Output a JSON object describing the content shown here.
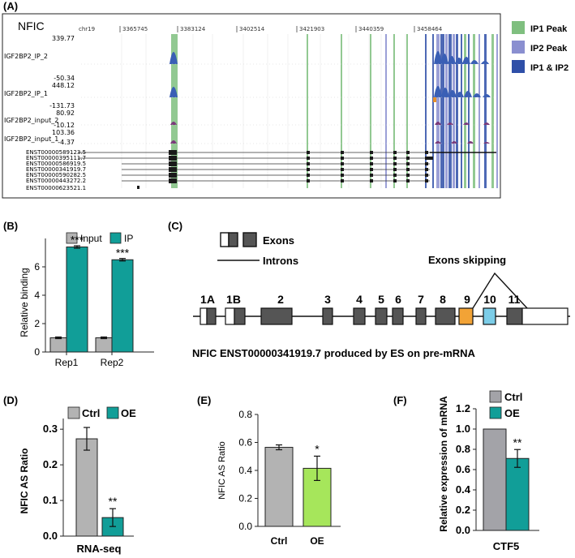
{
  "figure": {
    "panel_a": {
      "label": "(A)",
      "gene": "NFIC",
      "chrom": "chr19",
      "coords": [
        "3365745",
        "3383124",
        "3402514",
        "3421903",
        "3440359",
        "3458464"
      ],
      "track_names": [
        "IGF2BP2_IP_2",
        "IGF2BP2_IP_1",
        "IGF2BP2_input_2",
        "IGF2BP2_input_1"
      ],
      "scales": [
        [
          "339.77",
          "-50.34"
        ],
        [
          "448.12",
          "-131.73"
        ],
        [
          "80.92",
          "-10.12"
        ],
        [
          "103.36",
          "-4.37"
        ]
      ],
      "transcripts": [
        "ENST00000589123.5",
        "ENST00000395111.7",
        "ENST00000586919.5",
        "ENST00000341919.7",
        "ENST00000590282.5",
        "ENST00000443272.2",
        "ENST00000623521.1"
      ],
      "legend": [
        {
          "label": "IP1 Peak",
          "color": "#7fbf7f"
        },
        {
          "label": "IP2 Peak",
          "color": "#8a8fd0"
        },
        {
          "label": "IP1 & IP2",
          "color": "#2f4fa8"
        }
      ]
    },
    "panel_c": {
      "label": "(C)",
      "exons_legend": "Exons",
      "introns_legend": "Introns",
      "skipping_label": "Exons skipping",
      "exon_numbers": [
        "1A",
        "1B",
        "2",
        "3",
        "4",
        "5",
        "6",
        "7",
        "8",
        "9",
        "10",
        "11"
      ],
      "caption": "NFIC ENST00000341919.7 produced by ES on pre-mRNA"
    }
  },
  "chart_data": [
    {
      "id": "B",
      "panel_label": "(B)",
      "type": "bar",
      "categories": [
        "Rep1",
        "Rep2"
      ],
      "series": [
        {
          "name": "Input",
          "color": "#b3b3b3",
          "values": [
            1.0,
            1.0
          ]
        },
        {
          "name": "IP",
          "color": "#119e98",
          "values": [
            7.4,
            6.5
          ]
        }
      ],
      "significance": [
        "***",
        "***"
      ],
      "ylabel": "Relative binding",
      "yticks": [
        "0",
        "2",
        "4",
        "6"
      ],
      "ylim": [
        0,
        8
      ]
    },
    {
      "id": "D",
      "panel_label": "(D)",
      "type": "bar",
      "categories": [
        "RNA-seq"
      ],
      "series": [
        {
          "name": "Ctrl",
          "color": "#b3b3b3",
          "values": [
            0.273
          ]
        },
        {
          "name": "OE",
          "color": "#119e98",
          "values": [
            0.052
          ]
        }
      ],
      "significance": "**",
      "xlabel": "RNA-seq",
      "ylabel": "NFIC AS Ratio",
      "yticks": [
        "0.0",
        "0.1",
        "0.2",
        "0.3"
      ],
      "ylim": [
        0,
        0.33
      ]
    },
    {
      "id": "E",
      "panel_label": "(E)",
      "type": "bar",
      "categories": [
        "Ctrl",
        "OE"
      ],
      "values": [
        0.565,
        0.415
      ],
      "colors": [
        "#b3b3b3",
        "#a6e65b"
      ],
      "significance": "*",
      "ylabel": "NFIC AS Ratio",
      "yticks": [
        "0.0",
        "0.2",
        "0.4",
        "0.6",
        "0.8"
      ],
      "ylim": [
        0,
        0.8
      ]
    },
    {
      "id": "F",
      "panel_label": "(F)",
      "type": "bar",
      "categories": [
        "CTF5"
      ],
      "series": [
        {
          "name": "Ctrl",
          "color": "#a3a3a8",
          "values": [
            1.0
          ]
        },
        {
          "name": "OE",
          "color": "#119e98",
          "values": [
            0.71
          ]
        }
      ],
      "significance": "**",
      "xlabel": "CTF5",
      "ylabel": "Relative expression of mRNA",
      "yticks": [
        "0.0",
        "0.2",
        "0.4",
        "0.6",
        "0.8",
        "1.0",
        "1.2"
      ],
      "ylim": [
        0,
        1.2
      ]
    }
  ]
}
